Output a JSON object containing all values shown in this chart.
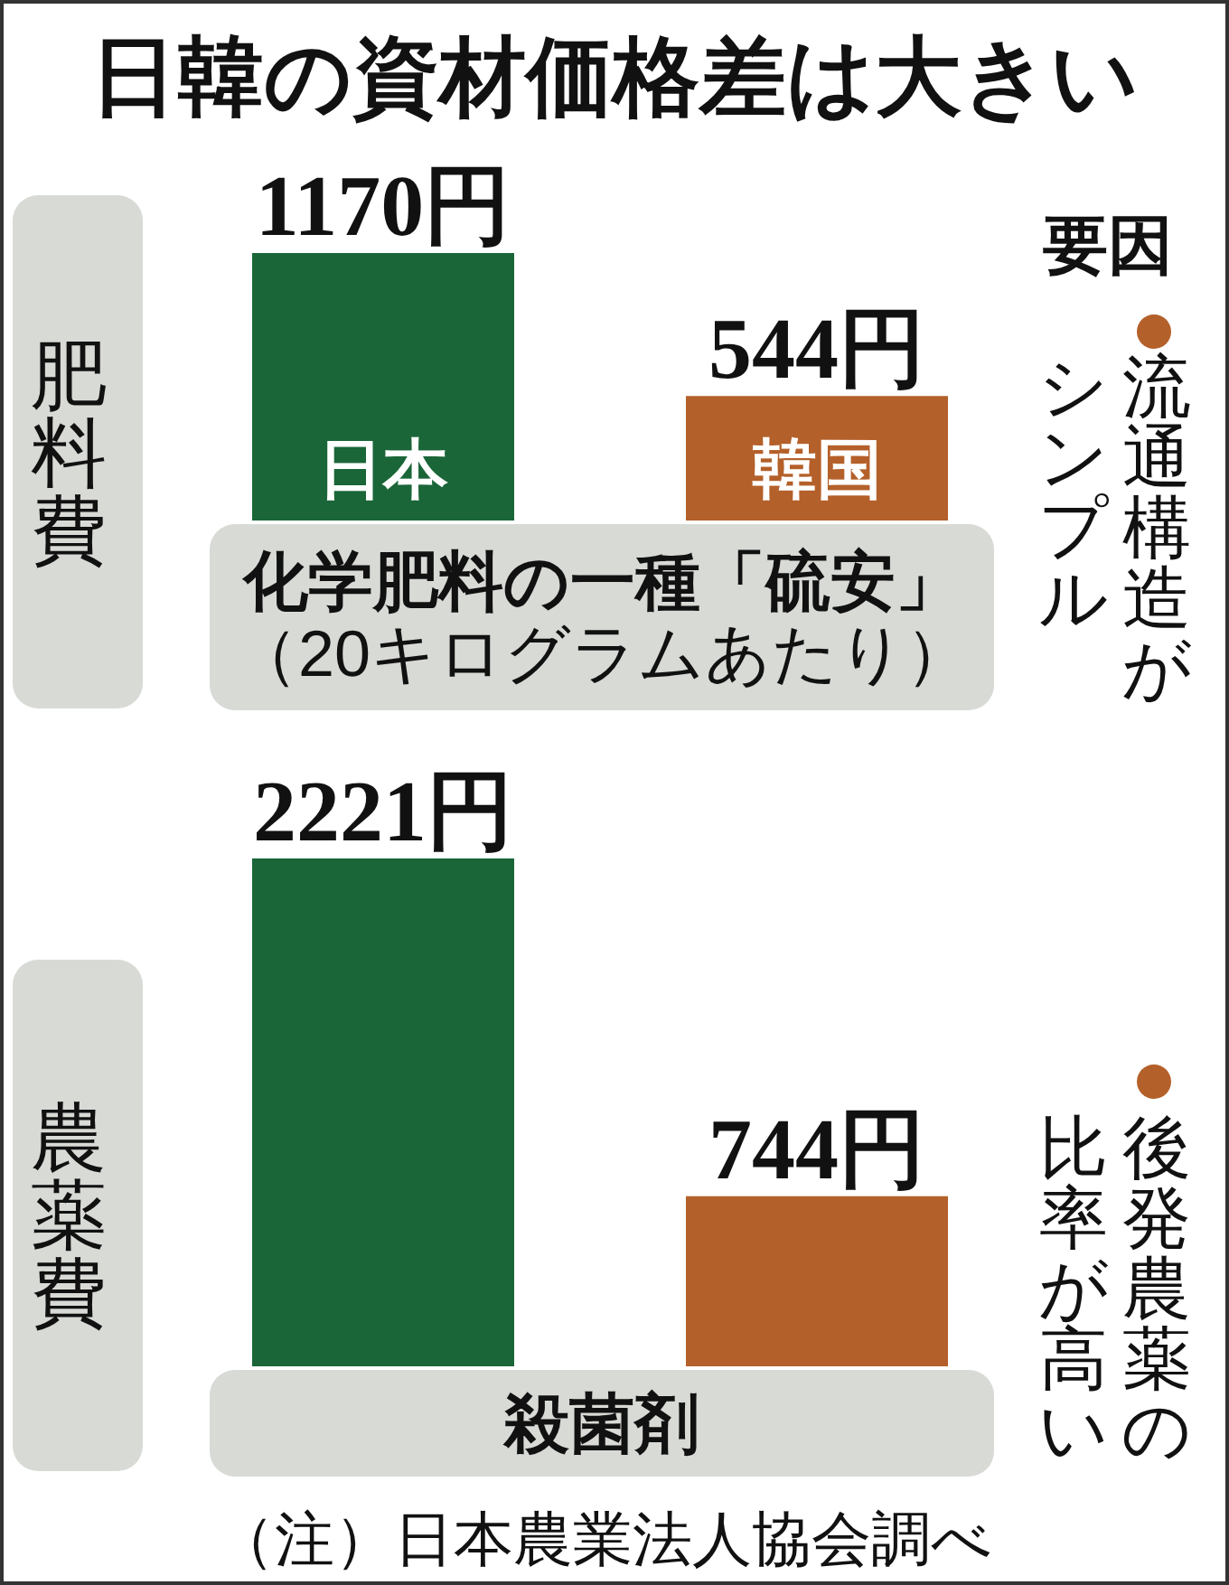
{
  "chart_data": [
    {
      "type": "bar",
      "title": "日韓の資材価格差は大きい",
      "ylabel": "肥料費",
      "xlabel": "化学肥料の一種「硫安」（20キログラムあたり）",
      "categories": [
        "日本",
        "韓国"
      ],
      "values": [
        1170,
        544
      ],
      "colors": [
        "#1a6638",
        "#b4602a"
      ],
      "value_labels": [
        "1170円",
        "544円"
      ],
      "annotations": [
        "要因",
        "流通構造がシンプル"
      ]
    },
    {
      "type": "bar",
      "ylabel": "農薬費",
      "xlabel": "殺菌剤",
      "categories": [
        null,
        null
      ],
      "values": [
        2221,
        744
      ],
      "colors": [
        "#1a6638",
        "#b4602a"
      ],
      "value_labels": [
        "2221円",
        "744円"
      ],
      "annotations": [
        "後発農薬の比率が高い",
        "（注）日本農業法人協会調べ"
      ]
    }
  ]
}
